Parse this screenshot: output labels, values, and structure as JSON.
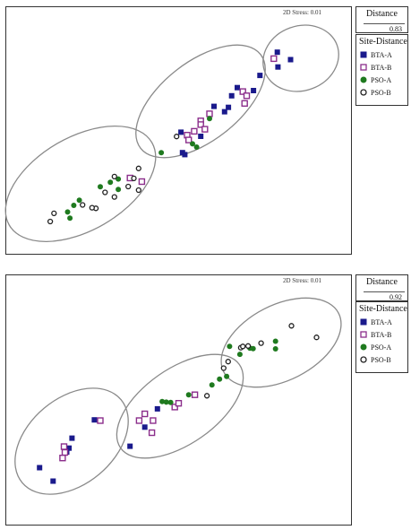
{
  "colors": {
    "BTA-A": "#1a1a8c",
    "BTA-B": "#8b2e8b",
    "PSO-A": "#1f7a1f",
    "PSO-B": "#222222",
    "ellipse": "#8a8a8a"
  },
  "chart_data": [
    {
      "type": "scatter",
      "panel": "A",
      "stress_label": "2D Stress: 0.01",
      "distance": {
        "title": "Distance",
        "value": "0.83"
      },
      "legend": {
        "title": "Site-Distance",
        "entries": [
          {
            "name": "BTA-A",
            "marker": "filled-square"
          },
          {
            "name": "BTA-B",
            "marker": "open-square"
          },
          {
            "name": "PSO-A",
            "marker": "filled-circle"
          },
          {
            "name": "PSO-B",
            "marker": "open-circle"
          }
        ]
      },
      "xlim": [
        0,
        100
      ],
      "ylim": [
        0,
        100
      ],
      "series": [
        {
          "name": "BTA-A",
          "points": [
            [
              83.5,
              91.7
            ],
            [
              88.0,
              87.7
            ],
            [
              83.7,
              83.7
            ],
            [
              77.6,
              79.2
            ],
            [
              75.4,
              71.0
            ],
            [
              69.9,
              72.6
            ],
            [
              68.0,
              68.2
            ],
            [
              66.9,
              62.0
            ],
            [
              65.6,
              59.6
            ],
            [
              62.0,
              62.5
            ],
            [
              57.5,
              46.4
            ],
            [
              50.8,
              48.6
            ],
            [
              51.3,
              37.6
            ],
            [
              52.1,
              36.5
            ]
          ]
        },
        {
          "name": "BTA-B",
          "points": [
            [
              82.3,
              88.2
            ],
            [
              71.8,
              70.5
            ],
            [
              73.1,
              68.2
            ],
            [
              72.4,
              64.1
            ],
            [
              60.5,
              58.5
            ],
            [
              57.5,
              54.7
            ],
            [
              57.5,
              52.7
            ],
            [
              58.9,
              50.2
            ],
            [
              55.3,
              49.1
            ],
            [
              52.9,
              47.0
            ],
            [
              53.4,
              44.4
            ],
            [
              33.5,
              23.9
            ],
            [
              37.5,
              22.0
            ]
          ]
        },
        {
          "name": "PSO-A",
          "points": [
            [
              60.5,
              55.9
            ],
            [
              54.7,
              42.3
            ],
            [
              56.1,
              40.6
            ],
            [
              44.1,
              37.6
            ],
            [
              29.5,
              23.4
            ],
            [
              26.8,
              21.6
            ],
            [
              23.4,
              19.2
            ],
            [
              29.5,
              17.8
            ],
            [
              16.3,
              12.0
            ],
            [
              14.4,
              9.2
            ],
            [
              12.3,
              5.6
            ],
            [
              13.1,
              2.3
            ]
          ]
        },
        {
          "name": "PSO-B",
          "points": [
            [
              49.3,
              46.3
            ],
            [
              36.4,
              29.1
            ],
            [
              28.2,
              24.7
            ],
            [
              25.0,
              16.2
            ],
            [
              32.9,
              19.3
            ],
            [
              36.4,
              17.4
            ],
            [
              34.8,
              23.7
            ],
            [
              28.2,
              13.7
            ],
            [
              21.9,
              7.6
            ],
            [
              17.4,
              9.4
            ],
            [
              20.6,
              7.9
            ],
            [
              7.7,
              4.9
            ],
            [
              6.4,
              0.5
            ]
          ]
        }
      ]
    },
    {
      "type": "scatter",
      "panel": "B",
      "stress_label": "2D Stress: 0.01",
      "distance": {
        "title": "Distance",
        "value": "0.92"
      },
      "legend": {
        "title": "Site-Distance",
        "entries": [
          {
            "name": "BTA-A",
            "marker": "filled-square"
          },
          {
            "name": "BTA-B",
            "marker": "open-square"
          },
          {
            "name": "PSO-A",
            "marker": "filled-circle"
          },
          {
            "name": "PSO-B",
            "marker": "open-circle"
          }
        ]
      },
      "xlim": [
        0,
        100
      ],
      "ylim": [
        0,
        100
      ],
      "series": [
        {
          "name": "BTA-A",
          "points": [
            [
              21.4,
              37.3
            ],
            [
              13.8,
              26.4
            ],
            [
              12.8,
              20.5
            ],
            [
              12.0,
              18.2
            ],
            [
              2.8,
              8.8
            ],
            [
              7.4,
              0.8
            ],
            [
              42.8,
              43.9
            ],
            [
              38.5,
              33.0
            ],
            [
              33.5,
              21.6
            ]
          ]
        },
        {
          "name": "BTA-B",
          "points": [
            [
              23.4,
              36.9
            ],
            [
              11.1,
              21.4
            ],
            [
              11.4,
              17.9
            ],
            [
              10.6,
              14.6
            ],
            [
              38.5,
              40.9
            ],
            [
              36.6,
              36.9
            ],
            [
              41.3,
              36.9
            ],
            [
              48.7,
              45.0
            ],
            [
              50.0,
              47.2
            ],
            [
              55.5,
              52.3
            ],
            [
              40.9,
              29.7
            ]
          ]
        },
        {
          "name": "PSO-A",
          "points": [
            [
              44.4,
              48.3
            ],
            [
              45.8,
              47.9
            ],
            [
              47.3,
              47.7
            ],
            [
              53.4,
              52.3
            ],
            [
              61.3,
              58.2
            ],
            [
              63.9,
              61.6
            ],
            [
              66.3,
              63.2
            ],
            [
              70.8,
              76.4
            ],
            [
              74.2,
              80.1
            ],
            [
              75.3,
              79.8
            ],
            [
              82.9,
              79.7
            ],
            [
              82.9,
              84.2
            ],
            [
              67.3,
              81.1
            ]
          ]
        },
        {
          "name": "PSO-B",
          "points": [
            [
              59.6,
              51.7
            ],
            [
              65.3,
              68.2
            ],
            [
              66.8,
              72.1
            ],
            [
              71.1,
              80.4
            ],
            [
              71.8,
              81.1
            ],
            [
              73.6,
              81.4
            ],
            [
              78.0,
              83.1
            ],
            [
              88.3,
              93.4
            ],
            [
              96.8,
              86.5
            ]
          ]
        }
      ]
    }
  ]
}
